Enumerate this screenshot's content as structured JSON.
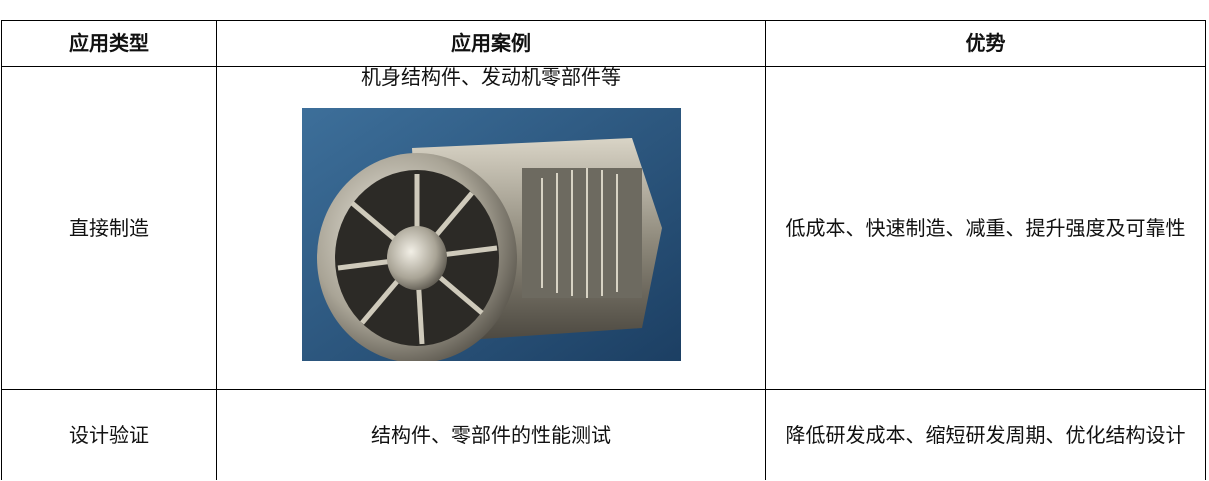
{
  "table": {
    "headers": [
      "应用类型",
      "应用案例",
      "优势"
    ],
    "rows": [
      [
        "直接制造",
        "机身结构件、发动机零部件等",
        "低成本、快速制造、减重、提升强度及可靠性"
      ],
      [
        "设计验证",
        "结构件、零部件的性能测试",
        "降低研发成本、缩短研发周期、优化结构设计"
      ]
    ]
  }
}
